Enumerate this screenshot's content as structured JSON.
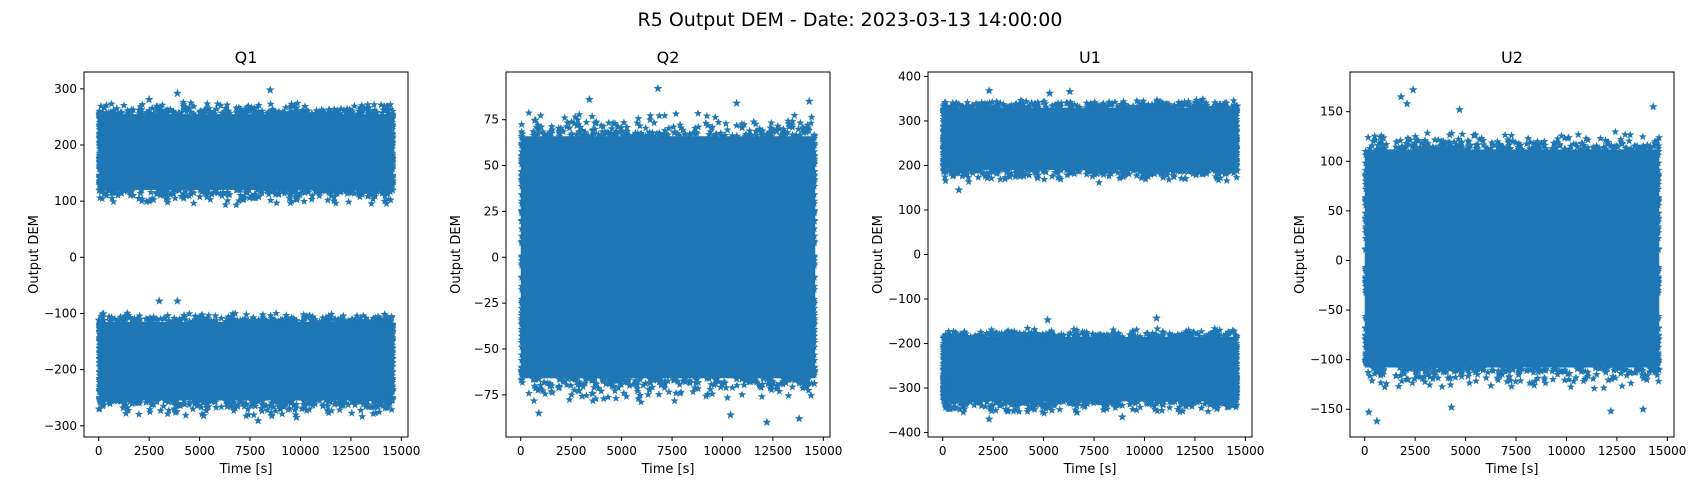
{
  "figure": {
    "suptitle": "R5 Output DEM - Date: 2023-03-13 14:00:00"
  },
  "colors": {
    "marker": "#1f77b4",
    "axes": "#000000"
  },
  "chart_data": [
    {
      "type": "scatter",
      "title": "Q1",
      "xlabel": "Time [s]",
      "ylabel": "Output DEM",
      "xlim": [
        -730,
        15330
      ],
      "ylim": [
        -320,
        330
      ],
      "xticks": [
        0,
        2500,
        5000,
        7500,
        10000,
        12500,
        15000
      ],
      "yticks": [
        -300,
        -200,
        -100,
        0,
        100,
        200,
        300
      ],
      "marker": "star",
      "x_range": [
        0,
        14600
      ],
      "bands": [
        {
          "ylow": 120,
          "yhigh": 255,
          "outlier_low": 90,
          "outlier_high": 278
        },
        {
          "ylow": -255,
          "yhigh": -115,
          "outlier_low": -285,
          "outlier_high": -98
        }
      ],
      "outliers": [
        {
          "x": 3000,
          "y": -78
        },
        {
          "x": 3900,
          "y": -78
        },
        {
          "x": 8500,
          "y": 298
        },
        {
          "x": 3900,
          "y": 292
        },
        {
          "x": 2500,
          "y": 281
        },
        {
          "x": 7900,
          "y": -291
        },
        {
          "x": 9800,
          "y": -285
        },
        {
          "x": 5200,
          "y": -282
        }
      ]
    },
    {
      "type": "scatter",
      "title": "Q2",
      "xlabel": "Time [s]",
      "ylabel": "Output DEM",
      "xlim": [
        -730,
        15330
      ],
      "ylim": [
        -98,
        101
      ],
      "xticks": [
        0,
        2500,
        5000,
        7500,
        10000,
        12500,
        15000
      ],
      "yticks": [
        -75,
        -50,
        -25,
        0,
        25,
        50,
        75
      ],
      "marker": "star",
      "x_range": [
        0,
        14600
      ],
      "bands": [
        {
          "ylow": -66,
          "yhigh": 66,
          "outlier_low": -80,
          "outlier_high": 80
        }
      ],
      "outliers": [
        {
          "x": 6800,
          "y": 92
        },
        {
          "x": 3400,
          "y": 86
        },
        {
          "x": 10700,
          "y": 84
        },
        {
          "x": 14300,
          "y": 85
        },
        {
          "x": 12200,
          "y": -90
        },
        {
          "x": 13800,
          "y": -88
        },
        {
          "x": 900,
          "y": -85
        },
        {
          "x": 10400,
          "y": -86
        }
      ]
    },
    {
      "type": "scatter",
      "title": "U1",
      "xlabel": "Time [s]",
      "ylabel": "Output DEM",
      "xlim": [
        -730,
        15330
      ],
      "ylim": [
        -410,
        410
      ],
      "xticks": [
        0,
        2500,
        5000,
        7500,
        10000,
        12500,
        15000
      ],
      "yticks": [
        -400,
        -300,
        -200,
        -100,
        0,
        100,
        200,
        300,
        400
      ],
      "marker": "star",
      "x_range": [
        0,
        14600
      ],
      "bands": [
        {
          "ylow": 190,
          "yhigh": 330,
          "outlier_low": 160,
          "outlier_high": 350
        },
        {
          "ylow": -330,
          "yhigh": -185,
          "outlier_low": -360,
          "outlier_high": -165
        }
      ],
      "outliers": [
        {
          "x": 800,
          "y": 145
        },
        {
          "x": 2300,
          "y": 368
        },
        {
          "x": 6300,
          "y": 366
        },
        {
          "x": 5300,
          "y": 362
        },
        {
          "x": 10600,
          "y": -143
        },
        {
          "x": 5200,
          "y": -147
        },
        {
          "x": 2300,
          "y": -370
        },
        {
          "x": 8900,
          "y": -365
        }
      ]
    },
    {
      "type": "scatter",
      "title": "U2",
      "xlabel": "Time [s]",
      "ylabel": "Output DEM",
      "xlim": [
        -730,
        15330
      ],
      "ylim": [
        -178,
        190
      ],
      "xticks": [
        0,
        2500,
        5000,
        7500,
        10000,
        12500,
        15000
      ],
      "yticks": [
        -150,
        -100,
        -50,
        0,
        50,
        100,
        150
      ],
      "marker": "star",
      "x_range": [
        0,
        14600
      ],
      "bands": [
        {
          "ylow": -108,
          "yhigh": 112,
          "outlier_low": -130,
          "outlier_high": 130
        }
      ],
      "outliers": [
        {
          "x": 2400,
          "y": 172
        },
        {
          "x": 1800,
          "y": 165
        },
        {
          "x": 2100,
          "y": 158
        },
        {
          "x": 4700,
          "y": 152
        },
        {
          "x": 14300,
          "y": 155
        },
        {
          "x": 600,
          "y": -162
        },
        {
          "x": 200,
          "y": -153
        },
        {
          "x": 12200,
          "y": -152
        },
        {
          "x": 13800,
          "y": -150
        },
        {
          "x": 4300,
          "y": -148
        }
      ]
    }
  ]
}
